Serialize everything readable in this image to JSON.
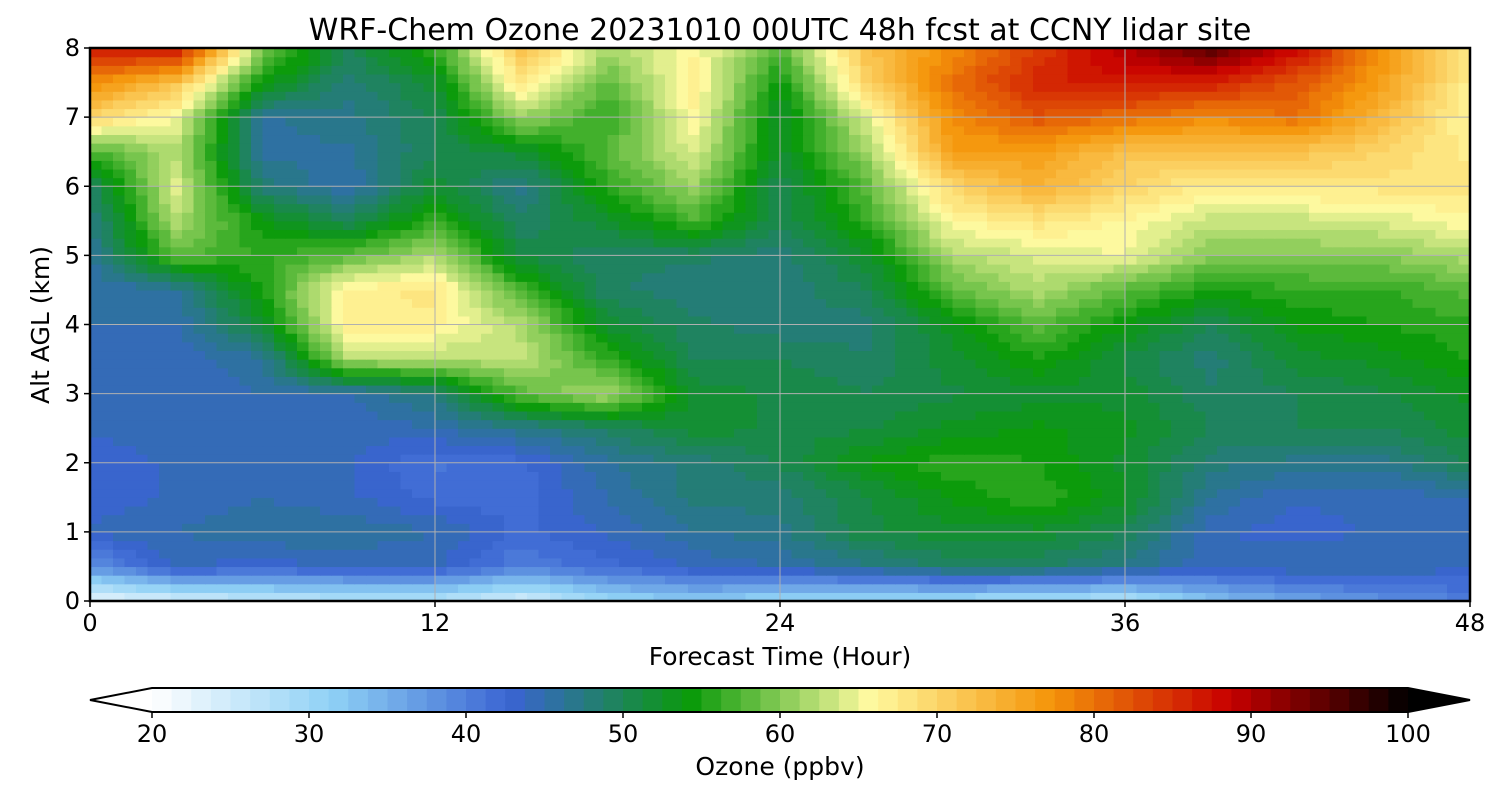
{
  "chart_data": {
    "type": "heatmap",
    "title": "WRF-Chem Ozone  20231010 00UTC 48h fcst at CCNY lidar site",
    "xlabel": "Forecast Time (Hour)",
    "ylabel": "Alt AGL (km)",
    "xlim": [
      0,
      48
    ],
    "ylim": [
      0,
      8
    ],
    "xticks": [
      0,
      12,
      24,
      36,
      48
    ],
    "yticks": [
      0,
      1,
      2,
      3,
      4,
      5,
      6,
      7,
      8
    ],
    "grid": true,
    "colorbar": {
      "label": "Ozone  (ppbv)",
      "range": [
        20,
        100
      ],
      "ticks": [
        20,
        30,
        40,
        50,
        60,
        70,
        80,
        90,
        100
      ],
      "extend": "both",
      "colors": [
        "#ffffff",
        "#8fd1f5",
        "#3a64d2",
        "#0a9a0a",
        "#fffaa0",
        "#f5960a",
        "#c80000",
        "#000000"
      ]
    },
    "x": [
      0,
      3,
      6,
      9,
      12,
      15,
      18,
      21,
      24,
      27,
      30,
      33,
      36,
      39,
      42,
      45,
      48
    ],
    "y": [
      0,
      0.5,
      1,
      1.5,
      2,
      2.5,
      3,
      3.5,
      4,
      4.5,
      5,
      5.5,
      6,
      6.5,
      7,
      7.5,
      8
    ],
    "z": [
      [
        22,
        24,
        26,
        27,
        27,
        24,
        30,
        32,
        30,
        29,
        29,
        28,
        27,
        33,
        36,
        38,
        40
      ],
      [
        38,
        44,
        43,
        44,
        44,
        40,
        42,
        44,
        45,
        47,
        49,
        49,
        47,
        44,
        45,
        45,
        44
      ],
      [
        44,
        45,
        46,
        46,
        45,
        42,
        44,
        46,
        47,
        51,
        52,
        52,
        50,
        44,
        43,
        44,
        44
      ],
      [
        43,
        44,
        45,
        44,
        42,
        42,
        45,
        48,
        48,
        51,
        54,
        56,
        53,
        46,
        44,
        44,
        45
      ],
      [
        43,
        44,
        44,
        44,
        41,
        42,
        46,
        48,
        50,
        54,
        56,
        55,
        52,
        48,
        47,
        47,
        50
      ],
      [
        44,
        44,
        44,
        44,
        45,
        47,
        49,
        52,
        51,
        51,
        53,
        54,
        53,
        50,
        50,
        50,
        52
      ],
      [
        44,
        44,
        45,
        45,
        48,
        58,
        62,
        52,
        51,
        50,
        51,
        52,
        52,
        49,
        50,
        51,
        53
      ],
      [
        44,
        44,
        46,
        62,
        62,
        63,
        56,
        50,
        50,
        49,
        52,
        55,
        51,
        48,
        52,
        53,
        55
      ],
      [
        45,
        45,
        52,
        67,
        67,
        62,
        52,
        49,
        48,
        48,
        53,
        58,
        54,
        50,
        54,
        55,
        56
      ],
      [
        45,
        46,
        55,
        67,
        68,
        57,
        49,
        48,
        48,
        50,
        58,
        62,
        58,
        55,
        56,
        56,
        58
      ],
      [
        46,
        58,
        56,
        58,
        62,
        51,
        49,
        49,
        48,
        52,
        62,
        64,
        65,
        60,
        60,
        60,
        62
      ],
      [
        47,
        62,
        54,
        50,
        56,
        49,
        52,
        57,
        50,
        56,
        66,
        68,
        66,
        63,
        63,
        64,
        66
      ],
      [
        49,
        64,
        48,
        45,
        52,
        47,
        56,
        61,
        50,
        58,
        70,
        74,
        70,
        67,
        68,
        68,
        68
      ],
      [
        57,
        62,
        46,
        46,
        50,
        52,
        58,
        64,
        52,
        61,
        76,
        76,
        72,
        72,
        72,
        70,
        67
      ],
      [
        70,
        65,
        46,
        47,
        50,
        61,
        56,
        66,
        52,
        64,
        78,
        82,
        80,
        78,
        80,
        73,
        66
      ],
      [
        78,
        72,
        54,
        48,
        52,
        68,
        58,
        67,
        54,
        70,
        80,
        86,
        87,
        86,
        82,
        76,
        67
      ],
      [
        86,
        88,
        60,
        50,
        56,
        72,
        62,
        66,
        58,
        72,
        78,
        84,
        90,
        95,
        88,
        77,
        68
      ]
    ]
  }
}
